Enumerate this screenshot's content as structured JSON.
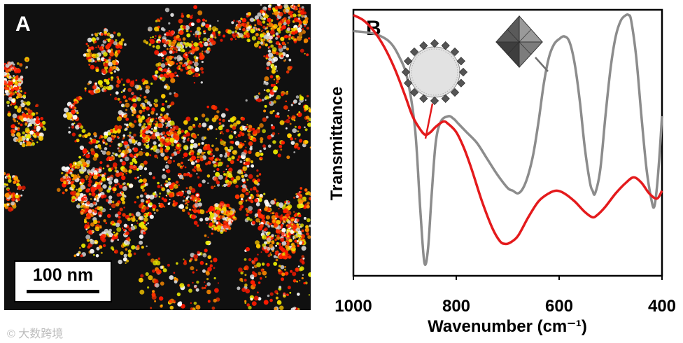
{
  "panel_a": {
    "letter": "A",
    "scale_bar_label": "100 nm"
  },
  "chart_data": {
    "type": "line",
    "panel_letter": "B",
    "xlabel": "Wavenumber (cm⁻¹)",
    "ylabel": "Transmittance",
    "xlim": [
      1000,
      400
    ],
    "ylim": [
      0,
      100
    ],
    "x_ticks": [
      1000,
      800,
      600,
      400
    ],
    "y_ticks_shown": false,
    "grid": false,
    "series": [
      {
        "color": "#8c8c8c",
        "x": [
          1000,
          960,
          930,
          910,
          895,
          880,
          870,
          862,
          855,
          848,
          840,
          830,
          815,
          805,
          795,
          780,
          760,
          740,
          720,
          700,
          690,
          680,
          670,
          660,
          650,
          640,
          630,
          620,
          610,
          600,
          590,
          580,
          570,
          560,
          550,
          540,
          535,
          530,
          520,
          510,
          500,
          490,
          480,
          470,
          465,
          460,
          450,
          440,
          430,
          420,
          415,
          410,
          405,
          400
        ],
        "y": [
          92,
          91,
          88,
          82,
          74,
          55,
          25,
          5,
          10,
          30,
          50,
          58,
          60,
          59,
          57,
          54,
          50,
          44,
          38,
          33,
          32,
          31,
          33,
          38,
          46,
          58,
          72,
          82,
          87,
          89,
          90,
          88,
          80,
          66,
          48,
          35,
          32,
          31,
          40,
          60,
          78,
          90,
          96,
          98,
          98,
          96,
          82,
          60,
          40,
          28,
          26,
          33,
          45,
          60
        ]
      },
      {
        "color": "#e41a1c",
        "x": [
          1000,
          980,
          960,
          940,
          920,
          900,
          885,
          870,
          860,
          850,
          840,
          825,
          815,
          800,
          785,
          770,
          750,
          730,
          715,
          705,
          695,
          680,
          660,
          640,
          620,
          605,
          590,
          570,
          550,
          535,
          525,
          510,
          490,
          470,
          455,
          440,
          425,
          410,
          400
        ],
        "y": [
          98,
          96,
          92,
          86,
          78,
          68,
          60,
          55,
          53,
          54,
          56,
          58,
          57,
          54,
          48,
          40,
          28,
          18,
          13,
          12,
          12.5,
          15,
          22,
          28,
          31,
          32,
          31,
          28,
          24,
          22,
          23,
          26,
          31,
          35,
          37,
          35,
          31,
          29,
          32
        ]
      }
    ],
    "insets": [
      {
        "icon": "nanoparticle-cluster-icon",
        "points_to_series": 1
      },
      {
        "icon": "octahedral-crystal-icon",
        "points_to_series": 0
      }
    ]
  },
  "watermark": "© 大数跨境"
}
